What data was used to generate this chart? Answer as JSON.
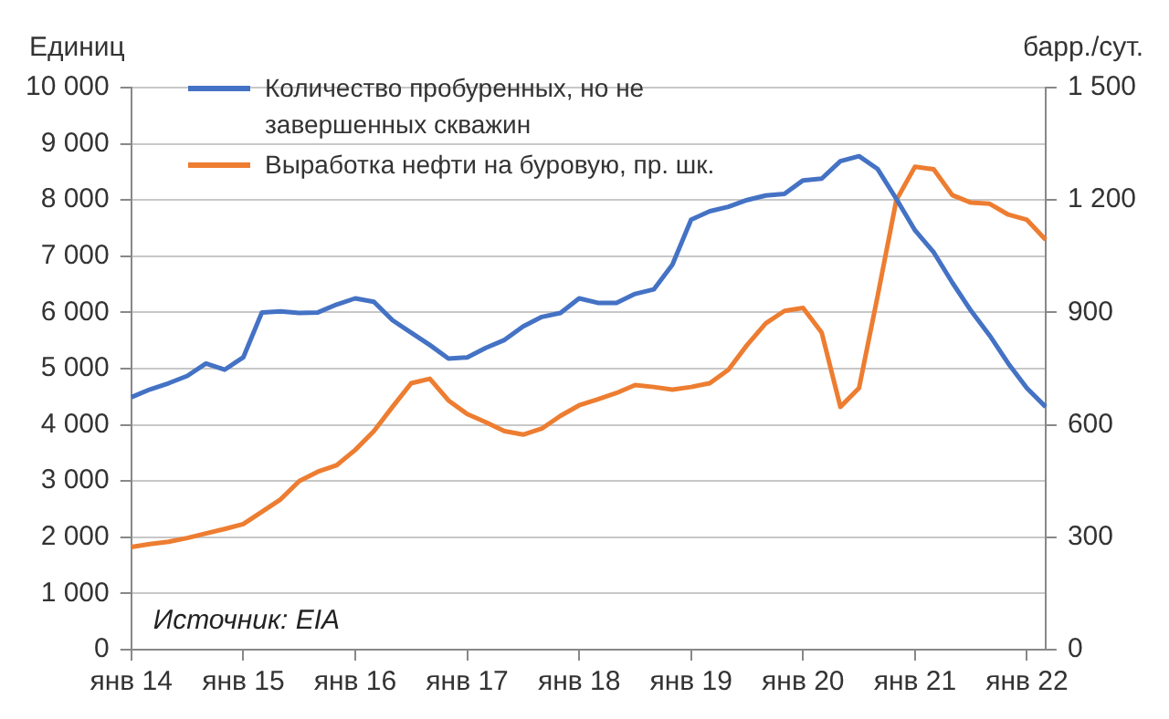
{
  "chart_data": {
    "type": "line",
    "ylabel": "Единиц",
    "y2label": "барр./сут.",
    "categories": [
      "янв 14",
      null,
      null,
      null,
      null,
      null,
      "янв 15",
      null,
      null,
      null,
      null,
      null,
      "янв 16",
      null,
      null,
      null,
      null,
      null,
      "янв 17",
      null,
      null,
      null,
      null,
      null,
      "янв 18",
      null,
      null,
      null,
      null,
      null,
      "янв 19",
      null,
      null,
      null,
      null,
      null,
      "янв 20",
      null,
      null,
      null,
      null,
      null,
      "янв 21",
      null,
      null,
      null,
      null,
      null,
      "янв 22",
      null
    ],
    "series": [
      {
        "name": "Количество пробуренных, но не завершенных скважин",
        "color": "#4472c4",
        "values": [
          4490,
          4630,
          4740,
          4870,
          5090,
          4980,
          5200,
          6000,
          6020,
          5990,
          6000,
          6140,
          6250,
          6190,
          5860,
          5640,
          5420,
          5180,
          5200,
          5370,
          5510,
          5750,
          5920,
          5990,
          6250,
          6170,
          6170,
          6330,
          6410,
          6850,
          7650,
          7800,
          7880,
          8000,
          8080,
          8110,
          8350,
          8380,
          8690,
          8780,
          8550,
          8020,
          7460,
          7070,
          6530,
          6030,
          5590,
          5090,
          4650,
          4320
        ]
      },
      {
        "name": "Выработка нефти на буровую, пр. шк.",
        "color": "#ed7d31",
        "axis": "y2",
        "values": [
          274,
          282,
          288,
          298,
          310,
          322,
          335,
          368,
          401,
          450,
          475,
          492,
          533,
          583,
          648,
          711,
          723,
          665,
          629,
          607,
          583,
          574,
          590,
          624,
          652,
          668,
          685,
          706,
          701,
          694,
          701,
          711,
          747,
          813,
          871,
          904,
          912,
          846,
          648,
          698,
          945,
          1200,
          1289,
          1282,
          1213,
          1193,
          1190,
          1161,
          1147,
          1094
        ]
      }
    ],
    "ylim": [
      0,
      10000
    ],
    "yticks": [
      0,
      {
        "value": 1000,
        "label": "1 000"
      },
      {
        "value": 2000,
        "label": "2 000"
      },
      {
        "value": 3000,
        "label": "3 000"
      },
      {
        "value": 4000,
        "label": "4 000"
      },
      {
        "value": 5000,
        "label": "5 000"
      },
      {
        "value": 6000,
        "label": "6 000"
      },
      {
        "value": 7000,
        "label": "7 000"
      },
      {
        "value": 8000,
        "label": "8 000"
      },
      {
        "value": 9000,
        "label": "9 000"
      },
      {
        "value": 10000,
        "label": "10 000"
      }
    ],
    "y2lim": [
      0,
      1500
    ],
    "y2ticks": [
      0,
      300,
      600,
      900,
      {
        "value": 1200,
        "label": "1 200"
      },
      {
        "value": 1500,
        "label": "1 500"
      }
    ],
    "grid": "y",
    "legend": "top left",
    "marker": "none",
    "line_style": "solid",
    "annotations": [
      "Источник: EIA"
    ]
  }
}
